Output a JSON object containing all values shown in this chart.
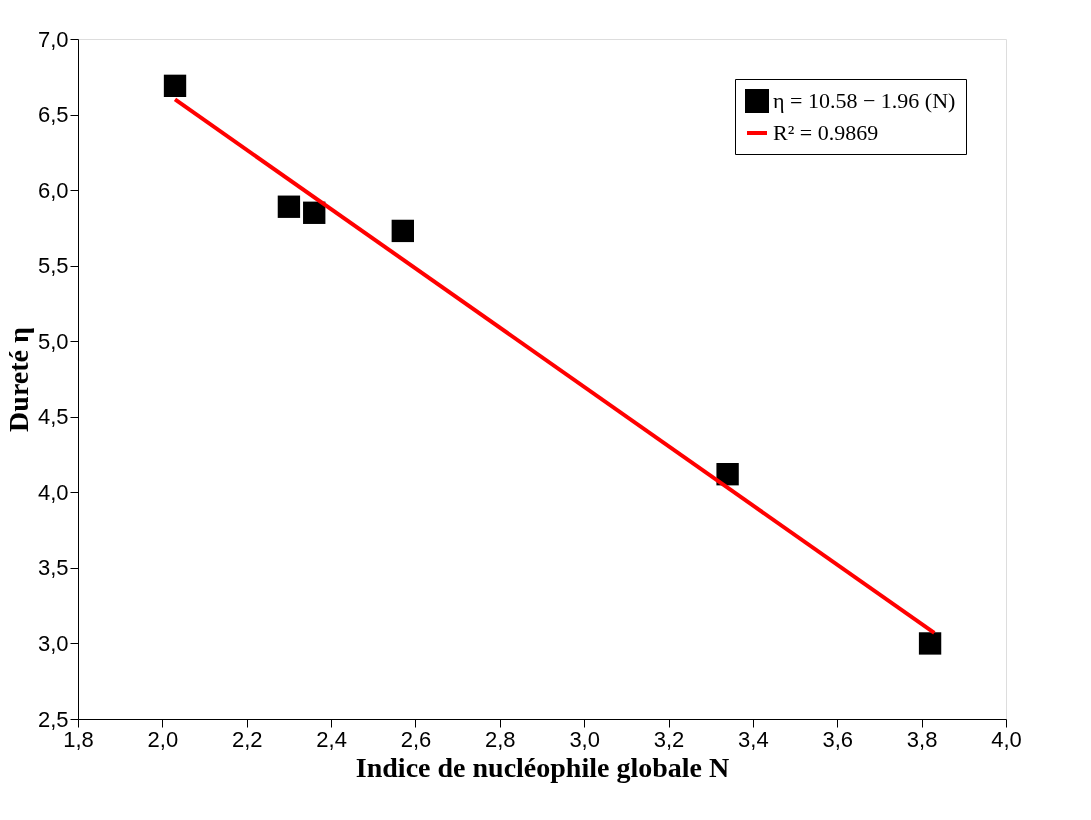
{
  "chart_data": {
    "type": "scatter",
    "xlabel": "Indice de nucléophile globale  N",
    "ylabel": "Dureté  η",
    "series": [
      {
        "name": "η = 10.58 − 1.96 (N)",
        "color": "#000000",
        "marker": "square",
        "x": [
          2.03,
          2.3,
          2.36,
          2.57,
          3.34,
          3.82
        ],
        "values": [
          6.69,
          5.89,
          5.85,
          5.73,
          4.12,
          3.0
        ]
      },
      {
        "name": "R² = 0.9869",
        "type": "line",
        "color": "#ff0000",
        "marker": "none",
        "line_style": "solid",
        "x": [
          2.03,
          3.83
        ],
        "values": [
          6.6,
          3.07
        ]
      }
    ],
    "xlim": [
      1.8,
      4.0
    ],
    "ylim": [
      2.5,
      7.0
    ],
    "xticks": [
      {
        "value": 1.8,
        "label": "1,8"
      },
      {
        "value": 2.0,
        "label": "2,0"
      },
      {
        "value": 2.2,
        "label": "2,2"
      },
      {
        "value": 2.4,
        "label": "2,4"
      },
      {
        "value": 2.6,
        "label": "2,6"
      },
      {
        "value": 2.8,
        "label": "2,8"
      },
      {
        "value": 3.0,
        "label": "3,0"
      },
      {
        "value": 3.2,
        "label": "3,2"
      },
      {
        "value": 3.4,
        "label": "3,4"
      },
      {
        "value": 3.6,
        "label": "3,6"
      },
      {
        "value": 3.8,
        "label": "3,8"
      },
      {
        "value": 4.0,
        "label": "4,0"
      }
    ],
    "yticks": [
      {
        "value": 2.5,
        "label": "2,5"
      },
      {
        "value": 3.0,
        "label": "3,0"
      },
      {
        "value": 3.5,
        "label": "3,5"
      },
      {
        "value": 4.0,
        "label": "4,0"
      },
      {
        "value": 4.5,
        "label": "4,5"
      },
      {
        "value": 5.0,
        "label": "5,0"
      },
      {
        "value": 5.5,
        "label": "5,5"
      },
      {
        "value": 6.0,
        "label": "6,0"
      },
      {
        "value": 6.5,
        "label": "6,5"
      },
      {
        "value": 7.0,
        "label": "7,0"
      }
    ],
    "legend": "top right",
    "grid": false
  }
}
